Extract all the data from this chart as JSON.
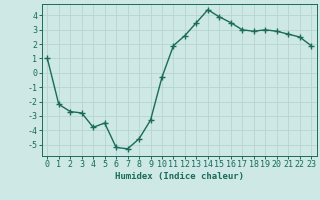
{
  "x": [
    0,
    1,
    2,
    3,
    4,
    5,
    6,
    7,
    8,
    9,
    10,
    11,
    12,
    13,
    14,
    15,
    16,
    17,
    18,
    19,
    20,
    21,
    22,
    23
  ],
  "y": [
    1.0,
    -2.2,
    -2.7,
    -2.8,
    -3.8,
    -3.5,
    -5.2,
    -5.3,
    -4.6,
    -3.3,
    -0.3,
    1.9,
    2.6,
    3.5,
    4.4,
    3.9,
    3.5,
    3.0,
    2.9,
    3.0,
    2.9,
    2.7,
    2.5,
    1.9
  ],
  "line_color": "#1a6b5a",
  "marker": "+",
  "markersize": 4,
  "linewidth": 1.0,
  "background_color": "#cde8e5",
  "grid_color": "#b8d4d0",
  "tick_color": "#1a6b5a",
  "label_color": "#1a6b5a",
  "xlabel": "Humidex (Indice chaleur)",
  "ylim": [
    -5.8,
    4.8
  ],
  "xlim": [
    -0.5,
    23.5
  ],
  "yticks": [
    -5,
    -4,
    -3,
    -2,
    -1,
    0,
    1,
    2,
    3,
    4
  ],
  "xticks": [
    0,
    1,
    2,
    3,
    4,
    5,
    6,
    7,
    8,
    9,
    10,
    11,
    12,
    13,
    14,
    15,
    16,
    17,
    18,
    19,
    20,
    21,
    22,
    23
  ],
  "axis_fontsize": 6.5,
  "tick_fontsize": 6.0,
  "markeredgewidth": 1.0
}
